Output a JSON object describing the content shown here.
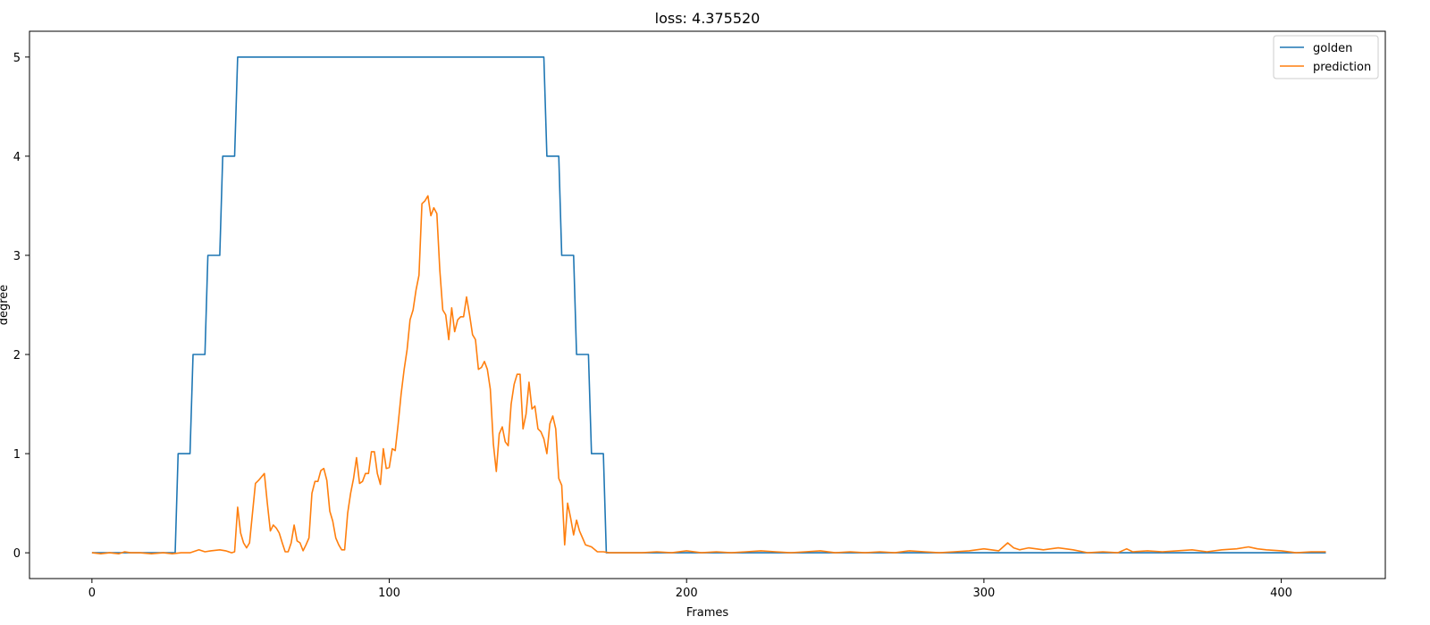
{
  "chart_data": {
    "type": "line",
    "title": "loss: 4.375520",
    "xlabel": "Frames",
    "ylabel": "degree",
    "xlim": [
      -21,
      435
    ],
    "ylim": [
      -0.26,
      5.26
    ],
    "xticks": [
      0,
      100,
      200,
      300,
      400
    ],
    "yticks": [
      0,
      1,
      2,
      3,
      4,
      5
    ],
    "legend_position": "top-right",
    "series": [
      {
        "name": "golden",
        "color": "#1f77b4",
        "x": [
          0,
          28,
          29,
          33,
          34,
          38,
          39,
          43,
          44,
          48,
          49,
          152,
          153,
          157,
          158,
          162,
          163,
          167,
          168,
          172,
          173,
          415
        ],
        "y": [
          0,
          0,
          1,
          1,
          2,
          2,
          3,
          3,
          4,
          4,
          5,
          5,
          4,
          4,
          3,
          3,
          2,
          2,
          1,
          1,
          0,
          0
        ]
      },
      {
        "name": "prediction",
        "color": "#ff7f0e",
        "x": [
          0,
          3,
          6,
          9,
          11,
          13,
          16,
          20,
          24,
          27,
          30,
          33,
          36,
          38,
          40,
          43,
          45,
          47,
          48,
          49,
          50,
          51,
          52,
          53,
          55,
          56,
          58,
          59,
          60,
          61,
          62,
          63,
          64,
          65,
          66,
          67,
          68,
          69,
          70,
          71,
          72,
          73,
          74,
          75,
          76,
          77,
          78,
          79,
          80,
          81,
          82,
          83,
          84,
          85,
          86,
          87,
          88,
          89,
          90,
          91,
          92,
          93,
          94,
          95,
          96,
          97,
          98,
          99,
          100,
          101,
          102,
          103,
          104,
          105,
          106,
          107,
          108,
          109,
          110,
          111,
          112,
          113,
          114,
          115,
          116,
          117,
          118,
          119,
          120,
          121,
          122,
          123,
          124,
          125,
          126,
          127,
          128,
          129,
          130,
          131,
          132,
          133,
          134,
          135,
          136,
          137,
          138,
          139,
          140,
          141,
          142,
          143,
          144,
          145,
          146,
          147,
          148,
          149,
          150,
          151,
          152,
          153,
          154,
          155,
          156,
          157,
          158,
          159,
          160,
          161,
          162,
          163,
          164,
          165,
          166,
          168,
          170,
          172,
          174,
          176,
          180,
          185,
          190,
          195,
          200,
          205,
          210,
          215,
          220,
          225,
          230,
          235,
          240,
          245,
          250,
          255,
          260,
          265,
          270,
          275,
          280,
          285,
          290,
          295,
          300,
          305,
          308,
          310,
          312,
          315,
          320,
          325,
          330,
          335,
          340,
          345,
          348,
          350,
          355,
          360,
          365,
          370,
          375,
          380,
          385,
          389,
          392,
          395,
          400,
          405,
          410,
          415
        ],
        "y": [
          0,
          -0.01,
          0,
          -0.01,
          0.01,
          0,
          0,
          -0.01,
          0,
          -0.01,
          0,
          0,
          0.03,
          0.01,
          0.02,
          0.03,
          0.02,
          0,
          0.01,
          0.46,
          0.2,
          0.1,
          0.05,
          0.1,
          0.7,
          0.73,
          0.8,
          0.5,
          0.22,
          0.28,
          0.25,
          0.2,
          0.1,
          0.01,
          0.01,
          0.1,
          0.28,
          0.12,
          0.1,
          0.02,
          0.08,
          0.15,
          0.6,
          0.72,
          0.72,
          0.83,
          0.85,
          0.73,
          0.42,
          0.32,
          0.15,
          0.08,
          0.03,
          0.03,
          0.4,
          0.6,
          0.75,
          0.96,
          0.7,
          0.72,
          0.8,
          0.8,
          1.02,
          1.02,
          0.8,
          0.69,
          1.05,
          0.85,
          0.86,
          1.05,
          1.03,
          1.3,
          1.6,
          1.85,
          2.05,
          2.35,
          2.45,
          2.65,
          2.8,
          3.52,
          3.55,
          3.6,
          3.4,
          3.48,
          3.42,
          2.85,
          2.45,
          2.4,
          2.15,
          2.47,
          2.23,
          2.35,
          2.38,
          2.38,
          2.58,
          2.4,
          2.2,
          2.15,
          1.85,
          1.87,
          1.93,
          1.85,
          1.65,
          1.1,
          0.82,
          1.2,
          1.27,
          1.12,
          1.08,
          1.5,
          1.7,
          1.8,
          1.8,
          1.25,
          1.4,
          1.72,
          1.45,
          1.48,
          1.25,
          1.22,
          1.15,
          1.0,
          1.3,
          1.38,
          1.25,
          0.75,
          0.68,
          0.08,
          0.5,
          0.35,
          0.18,
          0.33,
          0.22,
          0.15,
          0.08,
          0.06,
          0.01,
          0.01,
          0,
          0,
          0,
          0,
          0.01,
          0,
          0.02,
          0,
          0.01,
          0,
          0.01,
          0.02,
          0.01,
          0,
          0.01,
          0.02,
          0,
          0.01,
          0,
          0.01,
          0,
          0.02,
          0.01,
          0,
          0.01,
          0.02,
          0.04,
          0.02,
          0.1,
          0.05,
          0.03,
          0.05,
          0.03,
          0.05,
          0.03,
          0,
          0.01,
          0,
          0.04,
          0.01,
          0.02,
          0.01,
          0.02,
          0.03,
          0.01,
          0.03,
          0.04,
          0.06,
          0.04,
          0.03,
          0.02,
          0,
          0.01,
          0.01
        ]
      }
    ]
  }
}
